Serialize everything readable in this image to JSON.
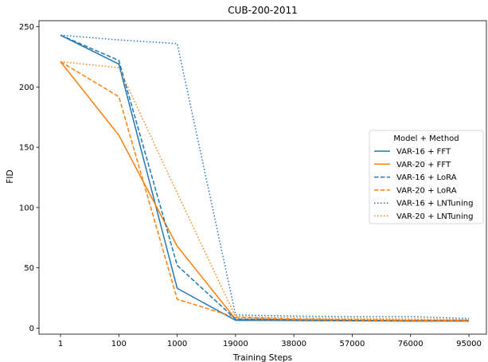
{
  "chart_data": {
    "type": "line",
    "title": "CUB-200-2011",
    "xlabel": "Training Steps",
    "ylabel": "FID",
    "x": [
      "1",
      "100",
      "1000",
      "19000",
      "38000",
      "57000",
      "76000",
      "95000"
    ],
    "ylim": [
      -5,
      255
    ],
    "yticks": [
      0,
      50,
      100,
      150,
      200,
      250
    ],
    "grid": false,
    "legend": {
      "title": "Model + Method",
      "placement": "center-right"
    },
    "series": [
      {
        "name": "VAR-16 + FFT",
        "color": "#1f77b4",
        "dash": "solid",
        "values": [
          243,
          219,
          33,
          6.5,
          6.3,
          6.0,
          5.8,
          5.8
        ]
      },
      {
        "name": "VAR-20 + FFT",
        "color": "#ff7f0e",
        "dash": "solid",
        "values": [
          221,
          160,
          68,
          7.5,
          6.8,
          6.3,
          6.0,
          6.0
        ]
      },
      {
        "name": "VAR-16 + LoRA",
        "color": "#1f77b4",
        "dash": "dashed",
        "values": [
          243,
          222,
          52,
          7.5,
          7.0,
          6.5,
          6.5,
          6.5
        ]
      },
      {
        "name": "VAR-20 + LoRA",
        "color": "#ff7f0e",
        "dash": "dashed",
        "values": [
          221,
          192,
          24,
          9.0,
          7.5,
          7.0,
          6.5,
          6.5
        ]
      },
      {
        "name": "VAR-16 + LNTuning",
        "color": "#1f77b4",
        "dash": "dotted",
        "values": [
          243,
          239,
          236,
          11,
          10,
          9.5,
          9.5,
          8.0
        ]
      },
      {
        "name": "VAR-20 + LNTuning",
        "color": "#ff7f0e",
        "dash": "dotted",
        "values": [
          221,
          216,
          112,
          9.5,
          8.5,
          8.0,
          7.5,
          7.0
        ]
      }
    ]
  }
}
